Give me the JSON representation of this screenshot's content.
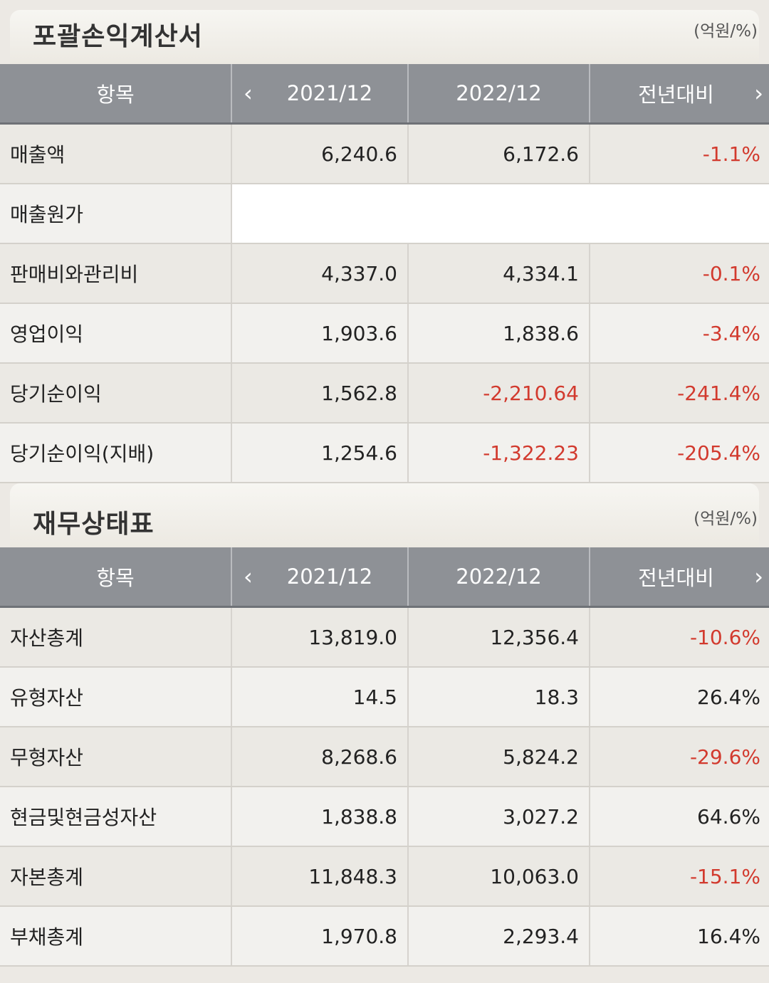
{
  "income": {
    "title": "포괄손익계산서",
    "unit": "(억원/%)",
    "headers": {
      "item": "항목",
      "p1": "2021/12",
      "p2": "2022/12",
      "change": "전년대비"
    },
    "rows": [
      {
        "label": "매출액",
        "v1": "6,240.6",
        "v2": "6,172.6",
        "chg": "-1.1%"
      },
      {
        "label": "매출원가",
        "v1": "",
        "v2": "",
        "chg": ""
      },
      {
        "label": "판매비와관리비",
        "v1": "4,337.0",
        "v2": "4,334.1",
        "chg": "-0.1%"
      },
      {
        "label": "영업이익",
        "v1": "1,903.6",
        "v2": "1,838.6",
        "chg": "-3.4%"
      },
      {
        "label": "당기순이익",
        "v1": "1,562.8",
        "v2": "-2,210.64",
        "chg": "-241.4%"
      },
      {
        "label": "당기순이익(지배)",
        "v1": "1,254.6",
        "v2": "-1,322.23",
        "chg": "-205.4%"
      }
    ]
  },
  "balance": {
    "title": "재무상태표",
    "unit": "(억원/%)",
    "headers": {
      "item": "항목",
      "p1": "2021/12",
      "p2": "2022/12",
      "change": "전년대비"
    },
    "rows": [
      {
        "label": "자산총계",
        "v1": "13,819.0",
        "v2": "12,356.4",
        "chg": "-10.6%"
      },
      {
        "label": "유형자산",
        "v1": "14.5",
        "v2": "18.3",
        "chg": "26.4%"
      },
      {
        "label": "무형자산",
        "v1": "8,268.6",
        "v2": "5,824.2",
        "chg": "-29.6%"
      },
      {
        "label": "현금및현금성자산",
        "v1": "1,838.8",
        "v2": "3,027.2",
        "chg": "64.6%"
      },
      {
        "label": "자본총계",
        "v1": "11,848.3",
        "v2": "10,063.0",
        "chg": "-15.1%"
      },
      {
        "label": "부채총계",
        "v1": "1,970.8",
        "v2": "2,293.4",
        "chg": "16.4%"
      }
    ]
  },
  "colors": {
    "negative": "#d23a2e",
    "header_bg": "#8e9196"
  }
}
